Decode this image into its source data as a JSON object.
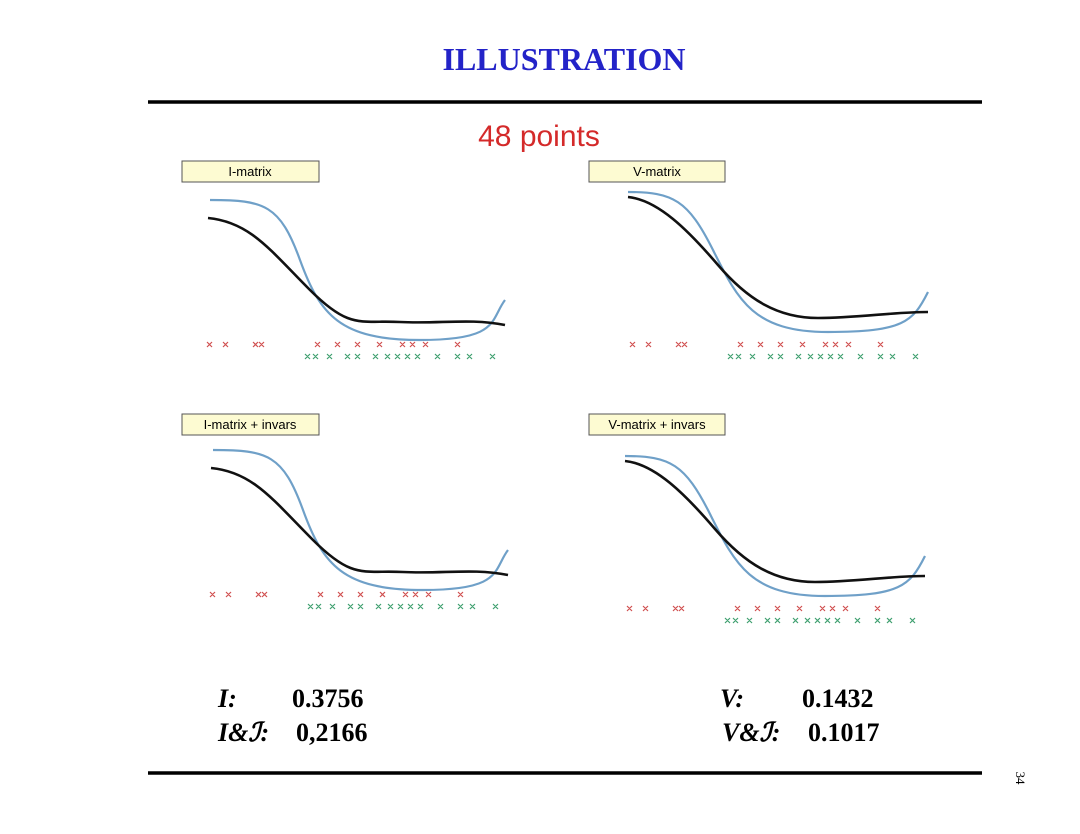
{
  "header": {
    "title": "ILLUSTRATION"
  },
  "subtitle": "48 points",
  "panels": [
    {
      "label": "I-matrix"
    },
    {
      "label": "V-matrix"
    },
    {
      "label": "I-matrix + invars"
    },
    {
      "label": "V-matrix + invars"
    }
  ],
  "results": {
    "left": [
      {
        "name": "I:",
        "value": "0.3756"
      },
      {
        "name": "I&ℐ:",
        "value": "0,2166"
      }
    ],
    "right": [
      {
        "name": "V:",
        "value": "0.1432"
      },
      {
        "name": "V&ℐ:",
        "value": "0.1017"
      }
    ]
  },
  "page_number": "34"
}
